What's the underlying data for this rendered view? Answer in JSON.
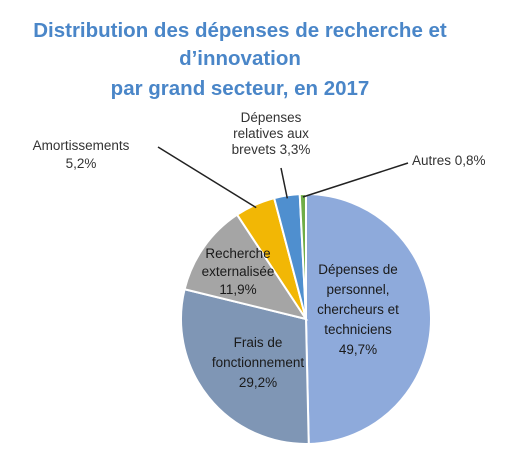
{
  "chart_data": {
    "type": "pie",
    "title_lines": [
      "Distribution des dépenses de recherche et",
      "d’innovation",
      "par grand secteur, en 2017"
    ],
    "slices": [
      {
        "label_lines": [
          "Dépenses de",
          "personnel,",
          "chercheurs et",
          "techniciens"
        ],
        "value_text": "49,7%",
        "value": 49.7,
        "color": "#8eaadb"
      },
      {
        "label_lines": [
          "Frais de",
          "fonctionnement"
        ],
        "value_text": "29,2%",
        "value": 29.2,
        "color": "#7f96b5"
      },
      {
        "label_lines": [
          "Recherche",
          "externalisée"
        ],
        "value_text": "11,9%",
        "value": 11.9,
        "color": "#a5a5a5"
      },
      {
        "label_lines": [
          "Amortissements"
        ],
        "value_text": "5,2%",
        "value": 5.2,
        "color": "#f2b705"
      },
      {
        "label_lines": [
          "Dépenses",
          "relatives aux",
          "brevets"
        ],
        "value_text": "3,3%",
        "value": 3.3,
        "color": "#4f8fcf"
      },
      {
        "label_lines": [
          "Autres"
        ],
        "value_text": "0,8%",
        "value": 0.8,
        "color": "#70ad47"
      }
    ],
    "legend": "none",
    "start_angle": "12 o'clock",
    "direction": "clockwise"
  }
}
